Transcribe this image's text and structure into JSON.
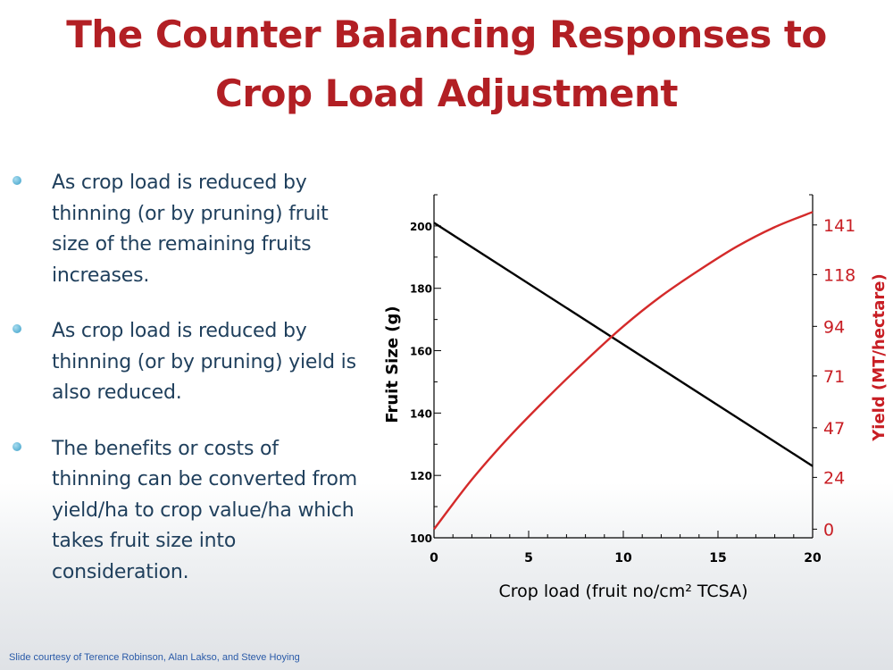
{
  "slide": {
    "title_line1": "The Counter Balancing Responses to",
    "title_line2": "Crop Load Adjustment",
    "bullets": [
      "As crop load is reduced by thinning (or by pruning) fruit size of the remaining fruits increases.",
      "As crop load is reduced by thinning (or by pruning) yield is also reduced.",
      "The benefits or costs of thinning can be converted from yield/ha to crop value/ha which takes fruit size into consideration."
    ],
    "footer": "Slide courtesy of Terence Robinson, Alan Lakso, and Steve Hoying"
  },
  "colors": {
    "title": "#b21f24",
    "bullet_text": "#1f3f5c",
    "fruit_size_line": "#000000",
    "yield_line": "#d42a2a"
  },
  "chart_data": {
    "type": "line",
    "xlabel": "Crop load (fruit no/cm² TCSA)",
    "ylabel_left": "Fruit Size (g)",
    "ylabel_right": "Yield (MT/hectare)",
    "x_ticks": [
      0,
      5,
      10,
      15,
      20
    ],
    "y_left_ticks": [
      100,
      120,
      140,
      160,
      180,
      200
    ],
    "y_right_ticks": [
      0,
      24,
      47,
      71,
      94,
      118,
      141
    ],
    "xlim": [
      0,
      20
    ],
    "ylim_left": [
      100,
      210
    ],
    "ylim_right": [
      -4,
      155
    ],
    "series": [
      {
        "axis": "left",
        "x": [
          0,
          20
        ],
        "values": [
          201,
          123
        ]
      },
      {
        "axis": "right",
        "x": [
          0,
          2,
          4,
          6,
          8,
          10,
          12,
          14,
          16,
          18,
          20
        ],
        "values": [
          0,
          23,
          43,
          61,
          78,
          94,
          108,
          120,
          131,
          140,
          147
        ]
      }
    ]
  }
}
